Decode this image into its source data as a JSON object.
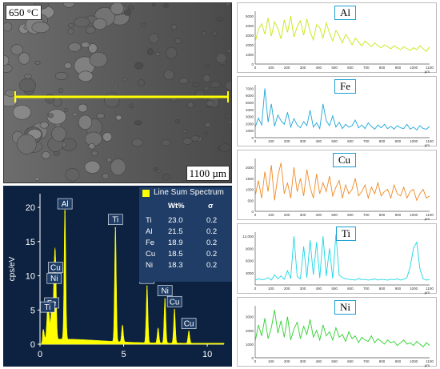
{
  "sem": {
    "temperature_label": "650 °C",
    "scale_label": "1100 µm",
    "line_color": "#ffff00"
  },
  "eds": {
    "legend_label": "Line Sum Spectrum",
    "wt_header": "Wt%",
    "sigma_header": "σ",
    "rows": [
      {
        "el": "Ti",
        "wt": "23.0",
        "s": "0.2"
      },
      {
        "el": "Al",
        "wt": "21.5",
        "s": "0.2"
      },
      {
        "el": "Fe",
        "wt": "18.9",
        "s": "0.2"
      },
      {
        "el": "Cu",
        "wt": "18.5",
        "s": "0.2"
      },
      {
        "el": "Ni",
        "wt": "18.3",
        "s": "0.2"
      }
    ],
    "ylabel": "cps/eV",
    "y_ticks": [
      "0",
      "5",
      "10",
      "15",
      "20"
    ],
    "x_ticks": [
      "0",
      "5",
      "10"
    ],
    "peak_labels": [
      {
        "text": "Al",
        "x": 1.49
      },
      {
        "text": "Ti",
        "x": 4.51
      },
      {
        "text": "Cu",
        "x": 0.93
      },
      {
        "text": "Ni",
        "x": 0.85
      },
      {
        "text": "Fe",
        "x": 0.7
      },
      {
        "text": "Ti",
        "x": 0.45
      },
      {
        "text": "Fe",
        "x": 6.4
      },
      {
        "text": "Ni",
        "x": 7.47
      },
      {
        "text": "Cu",
        "x": 8.04
      },
      {
        "text": "Cu",
        "x": 8.9
      }
    ]
  },
  "chart_data": [
    {
      "type": "area",
      "title": "",
      "xlabel": "",
      "ylabel": "cps/eV",
      "xlim": [
        0,
        11
      ],
      "ylim": [
        0,
        22
      ],
      "x": [
        0.2,
        0.45,
        0.55,
        0.7,
        0.85,
        0.93,
        1.49,
        4.51,
        4.93,
        6.4,
        7.06,
        7.47,
        8.04,
        8.9
      ],
      "series": [
        {
          "name": "Line Sum Spectrum",
          "values": [
            1.5,
            4.2,
            3.0,
            4.8,
            8.4,
            10.0,
            19.3,
            17.0,
            2.5,
            8.4,
            2.2,
            6.6,
            5.0,
            1.8
          ]
        }
      ]
    },
    {
      "type": "line",
      "label": "Al",
      "color": "#c6e812",
      "x_ticks": [
        "0",
        "100",
        "200",
        "300",
        "400",
        "500",
        "600",
        "700",
        "800",
        "900",
        "1000",
        "1100"
      ],
      "y_ticks": [
        "0",
        "1000",
        "2000",
        "3000",
        "4000",
        "5000"
      ],
      "ylim": [
        0,
        5500
      ],
      "xlim": [
        0,
        1100
      ],
      "x_unit": "µm",
      "values": [
        2300,
        3600,
        4200,
        3100,
        4800,
        2900,
        4400,
        3700,
        2600,
        4600,
        3300,
        5000,
        2800,
        3900,
        4500,
        3000,
        4700,
        3400,
        2500,
        4100,
        3800,
        2700,
        4300,
        3200,
        2400,
        3500,
        2900,
        2200,
        3100,
        2600,
        2000,
        2700,
        2300,
        1900,
        2400,
        2100,
        1800,
        2200,
        1900,
        1700,
        2000,
        1800,
        1600,
        1900,
        1700,
        1500,
        1800,
        1600,
        1400,
        1700,
        1500,
        1900,
        1600,
        1300,
        1800
      ]
    },
    {
      "type": "line",
      "label": "Fe",
      "color": "#1da7d8",
      "x_ticks": [
        "0",
        "100",
        "200",
        "300",
        "400",
        "500",
        "600",
        "700",
        "800",
        "900",
        "1000",
        "1100"
      ],
      "y_ticks": [
        "0",
        "1000",
        "2000",
        "3000",
        "4000",
        "5000",
        "6000",
        "7000"
      ],
      "ylim": [
        0,
        7500
      ],
      "xlim": [
        0,
        1100
      ],
      "x_unit": "µm",
      "values": [
        1500,
        2800,
        1800,
        7000,
        2200,
        4800,
        1600,
        3200,
        2400,
        1900,
        3600,
        1500,
        2700,
        1800,
        1400,
        2300,
        1700,
        3900,
        1500,
        2100,
        1300,
        4800,
        2400,
        1700,
        3100,
        1500,
        2200,
        1300,
        1900,
        1500,
        1700,
        2500,
        1400,
        1800,
        1300,
        2100,
        1600,
        1200,
        1800,
        1400,
        1900,
        1300,
        1600,
        1200,
        1700,
        1400,
        1300,
        1900,
        1200,
        1500,
        1100,
        1700,
        1300,
        1200,
        1600
      ]
    },
    {
      "type": "line",
      "label": "Cu",
      "color": "#f08a24",
      "x_ticks": [
        "0",
        "100",
        "200",
        "300",
        "400",
        "500",
        "600",
        "700",
        "800",
        "900",
        "1000",
        "1100"
      ],
      "y_ticks": [
        "0",
        "500",
        "1000",
        "1500",
        "2000"
      ],
      "ylim": [
        0,
        2400
      ],
      "xlim": [
        0,
        1100
      ],
      "x_unit": "µm",
      "values": [
        700,
        1400,
        600,
        1800,
        900,
        2100,
        500,
        1600,
        2200,
        800,
        1300,
        600,
        2000,
        900,
        1500,
        700,
        1900,
        1100,
        600,
        1700,
        800,
        1300,
        900,
        1600,
        700,
        1100,
        1400,
        600,
        1200,
        800,
        1000,
        1500,
        700,
        900,
        1200,
        600,
        1100,
        800,
        1300,
        700,
        900,
        1000,
        600,
        1200,
        800,
        700,
        1100,
        600,
        900,
        1000,
        500,
        800,
        1000,
        600,
        700
      ]
    },
    {
      "type": "line",
      "label": "Ti",
      "color": "#1ad6e6",
      "x_ticks": [
        "0",
        "100",
        "200",
        "300",
        "400",
        "500",
        "600",
        "700",
        "800",
        "900",
        "1000",
        "1100"
      ],
      "y_ticks": [
        "3000",
        "6000",
        "9000",
        "12,000"
      ],
      "ylim": [
        0,
        13000
      ],
      "xlim": [
        0,
        1100
      ],
      "x_unit": "µm",
      "values": [
        1200,
        1500,
        1300,
        1400,
        1800,
        1200,
        2500,
        1500,
        2200,
        1400,
        3500,
        1600,
        12000,
        2000,
        1500,
        9500,
        1800,
        11000,
        2500,
        10500,
        1700,
        12000,
        2200,
        9000,
        1600,
        12500,
        2400,
        1800,
        1500,
        1400,
        1300,
        1200,
        1600,
        1300,
        1400,
        1200,
        1300,
        1500,
        1200,
        1400,
        1300,
        1200,
        1400,
        1300,
        1500,
        1200,
        1400,
        1800,
        4500,
        9000,
        10500,
        4000,
        1500,
        1200,
        1300
      ]
    },
    {
      "type": "line",
      "label": "Ni",
      "color": "#2ed12e",
      "x_ticks": [
        "0",
        "100",
        "200",
        "300",
        "400",
        "500",
        "600",
        "700",
        "800",
        "900",
        "1000",
        "1100"
      ],
      "y_ticks": [
        "0",
        "1000",
        "2000",
        "3000"
      ],
      "ylim": [
        0,
        3800
      ],
      "xlim": [
        0,
        1100
      ],
      "x_unit": "µm",
      "values": [
        1200,
        2400,
        1600,
        2900,
        1400,
        2200,
        3500,
        1800,
        2700,
        1500,
        3000,
        1300,
        2100,
        2600,
        1400,
        2300,
        1700,
        2800,
        1500,
        2000,
        1300,
        2400,
        1600,
        1900,
        1300,
        2200,
        1500,
        1700,
        1200,
        1900,
        1400,
        1600,
        1100,
        1500,
        1300,
        1200,
        1600,
        1100,
        1400,
        1200,
        1000,
        1300,
        1100,
        1200,
        900,
        1100,
        1300,
        1000,
        1100,
        900,
        1200,
        1000,
        800,
        1100,
        900
      ]
    }
  ]
}
